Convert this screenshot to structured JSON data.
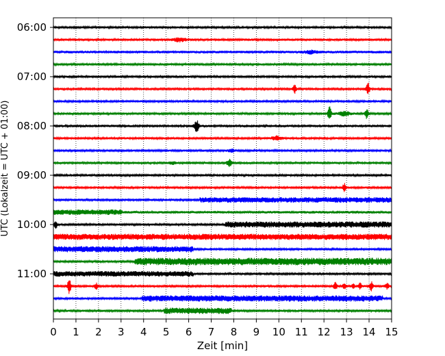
{
  "chart_data": {
    "type": "line",
    "title": "",
    "xlabel": "Zeit  [min]",
    "ylabel": "UTC (Lokalzeit = UTC + 01:00)",
    "xlim": [
      0,
      15
    ],
    "x_ticks": [
      "0",
      "1",
      "2",
      "3",
      "4",
      "5",
      "6",
      "7",
      "8",
      "9",
      "10",
      "11",
      "12",
      "13",
      "14",
      "15"
    ],
    "y_ticks": [
      "06:00",
      "07:00",
      "08:00",
      "09:00",
      "10:00",
      "11:00"
    ],
    "grid": "vertical-dotted",
    "colors": [
      "#000000",
      "#ff0000",
      "#0000ff",
      "#008000"
    ],
    "trace_interval_min": 15,
    "traces": [
      {
        "start": "06:00",
        "color": "#000000",
        "base": 1.5,
        "events": []
      },
      {
        "start": "06:15",
        "color": "#ff0000",
        "base": 1.6,
        "events": [
          {
            "t": 5.6,
            "amp": 2.5,
            "w": 0.2
          }
        ]
      },
      {
        "start": "06:30",
        "color": "#0000ff",
        "base": 1.8,
        "events": [
          {
            "t": 11.4,
            "amp": 2,
            "w": 0.2
          }
        ]
      },
      {
        "start": "06:45",
        "color": "#008000",
        "base": 1.5,
        "events": []
      },
      {
        "start": "07:00",
        "color": "#000000",
        "base": 1.5,
        "events": []
      },
      {
        "start": "07:15",
        "color": "#ff0000",
        "base": 1.5,
        "events": [
          {
            "t": 10.7,
            "amp": 6,
            "w": 0.05
          },
          {
            "t": 13.95,
            "amp": 9,
            "w": 0.05
          }
        ]
      },
      {
        "start": "07:30",
        "color": "#0000ff",
        "base": 1.5,
        "events": []
      },
      {
        "start": "07:45",
        "color": "#008000",
        "base": 1.5,
        "events": [
          {
            "t": 12.25,
            "amp": 11,
            "w": 0.05
          },
          {
            "t": 12.9,
            "amp": 3,
            "w": 0.2
          },
          {
            "t": 13.9,
            "amp": 7,
            "w": 0.05
          }
        ]
      },
      {
        "start": "08:00",
        "color": "#000000",
        "base": 1.7,
        "events": [
          {
            "t": 6.35,
            "amp": 8,
            "w": 0.07
          }
        ]
      },
      {
        "start": "08:15",
        "color": "#ff0000",
        "base": 1.5,
        "events": [
          {
            "t": 9.9,
            "amp": 3,
            "w": 0.15
          }
        ]
      },
      {
        "start": "08:30",
        "color": "#0000ff",
        "base": 1.5,
        "events": [
          {
            "t": 7.9,
            "amp": 2,
            "w": 0.1
          }
        ]
      },
      {
        "start": "08:45",
        "color": "#008000",
        "base": 1.6,
        "events": [
          {
            "t": 7.8,
            "amp": 5,
            "w": 0.07
          },
          {
            "t": 5.3,
            "amp": 1.5,
            "w": 0.1
          }
        ]
      },
      {
        "start": "09:00",
        "color": "#000000",
        "base": 1.5,
        "events": []
      },
      {
        "start": "09:15",
        "color": "#ff0000",
        "base": 1.5,
        "events": [
          {
            "t": 12.9,
            "amp": 6,
            "w": 0.05
          }
        ]
      },
      {
        "start": "09:30",
        "color": "#0000ff",
        "base": 1.5,
        "seg": [
          6.5,
          15,
          4
        ],
        "events": []
      },
      {
        "start": "09:45",
        "color": "#008000",
        "base": 1.8,
        "seg": [
          0,
          3.05,
          4
        ],
        "events": []
      },
      {
        "start": "10:00",
        "color": "#000000",
        "base": 1.5,
        "seg": [
          7.6,
          15,
          4.5
        ],
        "events": [
          {
            "t": 0.1,
            "amp": 5,
            "w": 0.05
          }
        ]
      },
      {
        "start": "10:15",
        "color": "#ff0000",
        "base": 1.5,
        "seg": [
          0,
          15,
          4.5
        ],
        "events": []
      },
      {
        "start": "10:30",
        "color": "#0000ff",
        "base": 1.5,
        "seg": [
          0,
          6.2,
          4.5
        ],
        "events": []
      },
      {
        "start": "10:45",
        "color": "#008000",
        "base": 1.5,
        "seg": [
          3.6,
          15,
          5.5
        ],
        "events": []
      },
      {
        "start": "11:00",
        "color": "#000000",
        "base": 1.5,
        "seg": [
          0,
          6.2,
          4
        ],
        "events": []
      },
      {
        "start": "11:15",
        "color": "#ff0000",
        "base": 1.5,
        "events": [
          {
            "t": 0.7,
            "amp": 12,
            "w": 0.05
          },
          {
            "t": 1.9,
            "amp": 4,
            "w": 0.05
          },
          {
            "t": 12.5,
            "amp": 6,
            "w": 0.05
          },
          {
            "t": 12.9,
            "amp": 4,
            "w": 0.05
          },
          {
            "t": 13.3,
            "amp": 3,
            "w": 0.05
          },
          {
            "t": 13.6,
            "amp": 4,
            "w": 0.05
          },
          {
            "t": 14.1,
            "amp": 7,
            "w": 0.05
          },
          {
            "t": 14.8,
            "amp": 4,
            "w": 0.05
          }
        ]
      },
      {
        "start": "11:30",
        "color": "#0000ff",
        "base": 1.5,
        "seg": [
          3.9,
          14.6,
          4.5
        ],
        "events": []
      },
      {
        "start": "11:45",
        "color": "#008000",
        "base": 1.5,
        "seg": [
          4.9,
          7.9,
          4.5
        ],
        "events": []
      }
    ]
  }
}
